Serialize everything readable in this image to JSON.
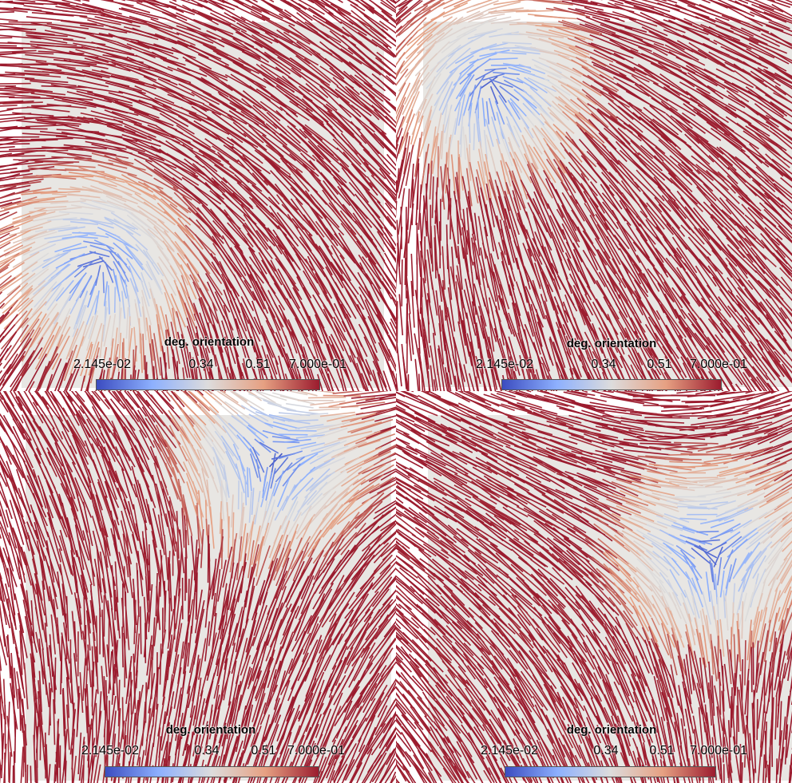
{
  "colors": {
    "background": "#e8e6e3",
    "low": "#3b4cc0",
    "mid": "#dddcdc",
    "high": "#9b1b2e"
  },
  "colorbar": {
    "title": "deg. orientation",
    "tick_labels": [
      "2.145e-02",
      "0.34",
      "0.51",
      "7.000e-01"
    ],
    "min": 0.02145,
    "max": 0.7
  },
  "panels": [
    {
      "id": "top-left",
      "defect_center": [
        0.21,
        0.67
      ],
      "swirl": "counterclockwise",
      "colorbar_title": "deg. orientation",
      "colorbar_ticks": [
        "2.145e-02",
        "0.34",
        "0.51",
        "7.000e-01"
      ]
    },
    {
      "id": "top-right",
      "defect_center": [
        0.19,
        0.18
      ],
      "swirl": "counterclockwise",
      "colorbar_title": "deg. orientation",
      "colorbar_ticks": [
        "2.145e-02",
        "0.34",
        "0.51",
        "7.000e-01"
      ]
    },
    {
      "id": "bottom-left",
      "defect_center": [
        0.68,
        0.12
      ],
      "swirl": "clockwise",
      "colorbar_title": "deg. orientation",
      "colorbar_ticks": [
        "2.145e-02",
        "0.34",
        "0.51",
        "7.000e-01"
      ]
    },
    {
      "id": "bottom-right",
      "defect_center": [
        0.78,
        0.38
      ],
      "swirl": "clockwise",
      "colorbar_title": "deg. orientation",
      "colorbar_ticks": [
        "2.145e-02",
        "0.34",
        "0.51",
        "7.000e-01"
      ]
    }
  ]
}
